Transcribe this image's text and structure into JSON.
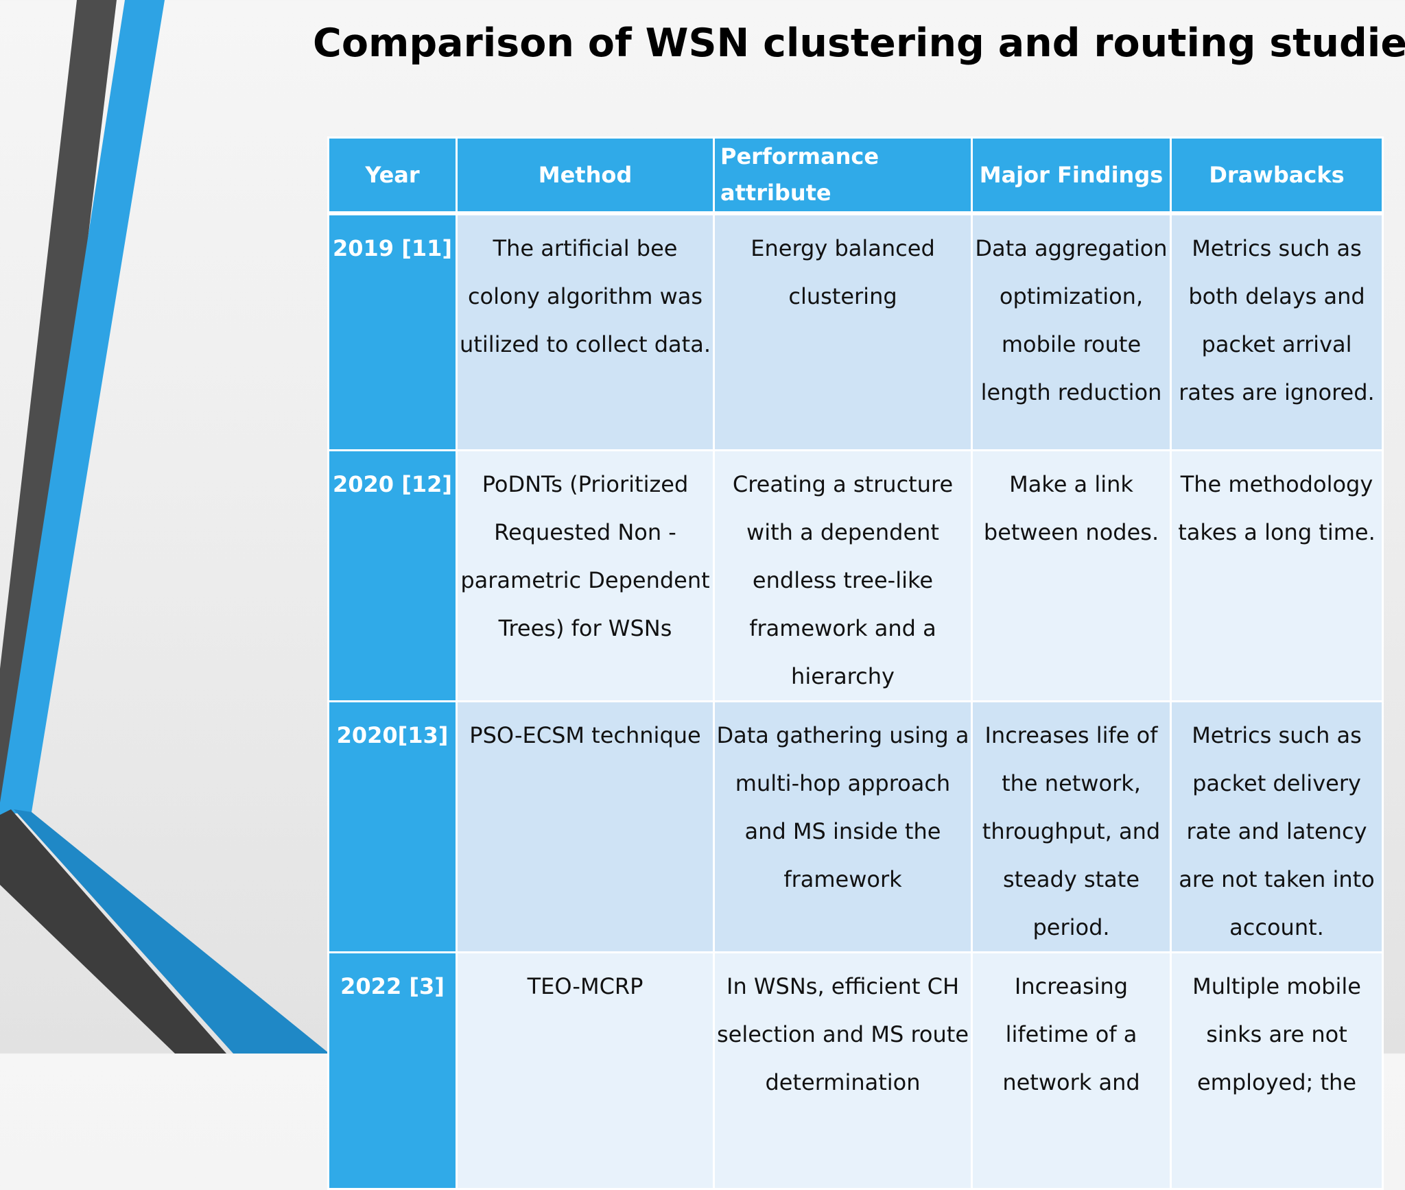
{
  "slide": {
    "title": "Comparison of  WSN clustering and routing studies"
  },
  "colors": {
    "header_blue": "#30aae8",
    "row_light": "#cfe3f5",
    "row_lighter": "#e8f2fb",
    "stripe_dark": "#4a4a4a",
    "stripe_blue": "#2a9fe0"
  },
  "table": {
    "headers": [
      "Year",
      "Method",
      "Performance attribute",
      "Major Findings",
      "Drawbacks"
    ],
    "rows": [
      {
        "year": "2019 [11]",
        "method": "The artificial bee colony algorithm was utilized to collect data.",
        "performance": "Energy balanced clustering",
        "findings": "Data aggregation optimization, mobile route length reduction",
        "drawbacks": "Metrics such as both delays and packet arrival rates are ignored."
      },
      {
        "year": "2020 [12]",
        "method": "PoDNTs (Prioritized Requested Non - parametric Dependent Trees) for WSNs",
        "performance": "Creating a structure with a dependent endless tree-like framework and a hierarchy",
        "findings": "Make a link between nodes.",
        "drawbacks": "The methodology takes a long time."
      },
      {
        "year": "2020[13]",
        "method": "PSO-ECSM technique",
        "performance": "Data gathering using a multi-hop approach and MS inside the framework",
        "findings": "Increases life of the network, throughput, and steady state period.",
        "drawbacks": "Metrics such as packet delivery rate and latency are not taken into account."
      },
      {
        "year": "2022 [3]",
        "method": "TEO-MCRP",
        "performance": "In WSNs, efficient CH selection and MS route determination",
        "findings": "Increasing lifetime of a network and",
        "drawbacks": "Multiple mobile sinks are not employed; the"
      }
    ]
  }
}
